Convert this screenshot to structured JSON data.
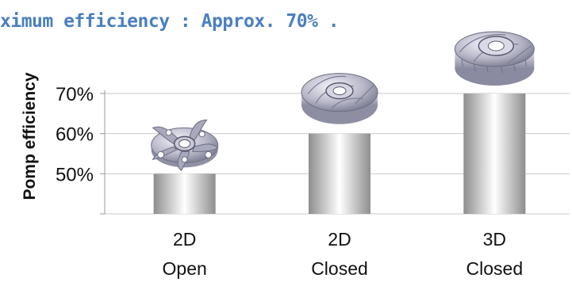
{
  "headline": "ximum efficiency : Approx. 70% .",
  "colors": {
    "headline": "#4a7fc0",
    "grid": "#c8c8c8",
    "bar_dark": "#9a9a9a",
    "bar_light": "#ffffff"
  },
  "chart_data": {
    "type": "bar",
    "title": "",
    "xlabel": "",
    "ylabel": "Pomp efficiency",
    "ylim": [
      40,
      70
    ],
    "yticks": [
      {
        "value": 50,
        "label": "50%"
      },
      {
        "value": 60,
        "label": "60%"
      },
      {
        "value": 70,
        "label": "70%"
      }
    ],
    "grid": true,
    "categories": [
      {
        "line1": "2D",
        "line2": "Open"
      },
      {
        "line1": "2D",
        "line2": "Closed"
      },
      {
        "line1": "3D",
        "line2": "Closed"
      }
    ],
    "values": [
      50,
      60,
      70
    ],
    "images": [
      "open-impeller-icon",
      "closed-impeller-icon",
      "3d-closed-impeller-icon"
    ]
  }
}
